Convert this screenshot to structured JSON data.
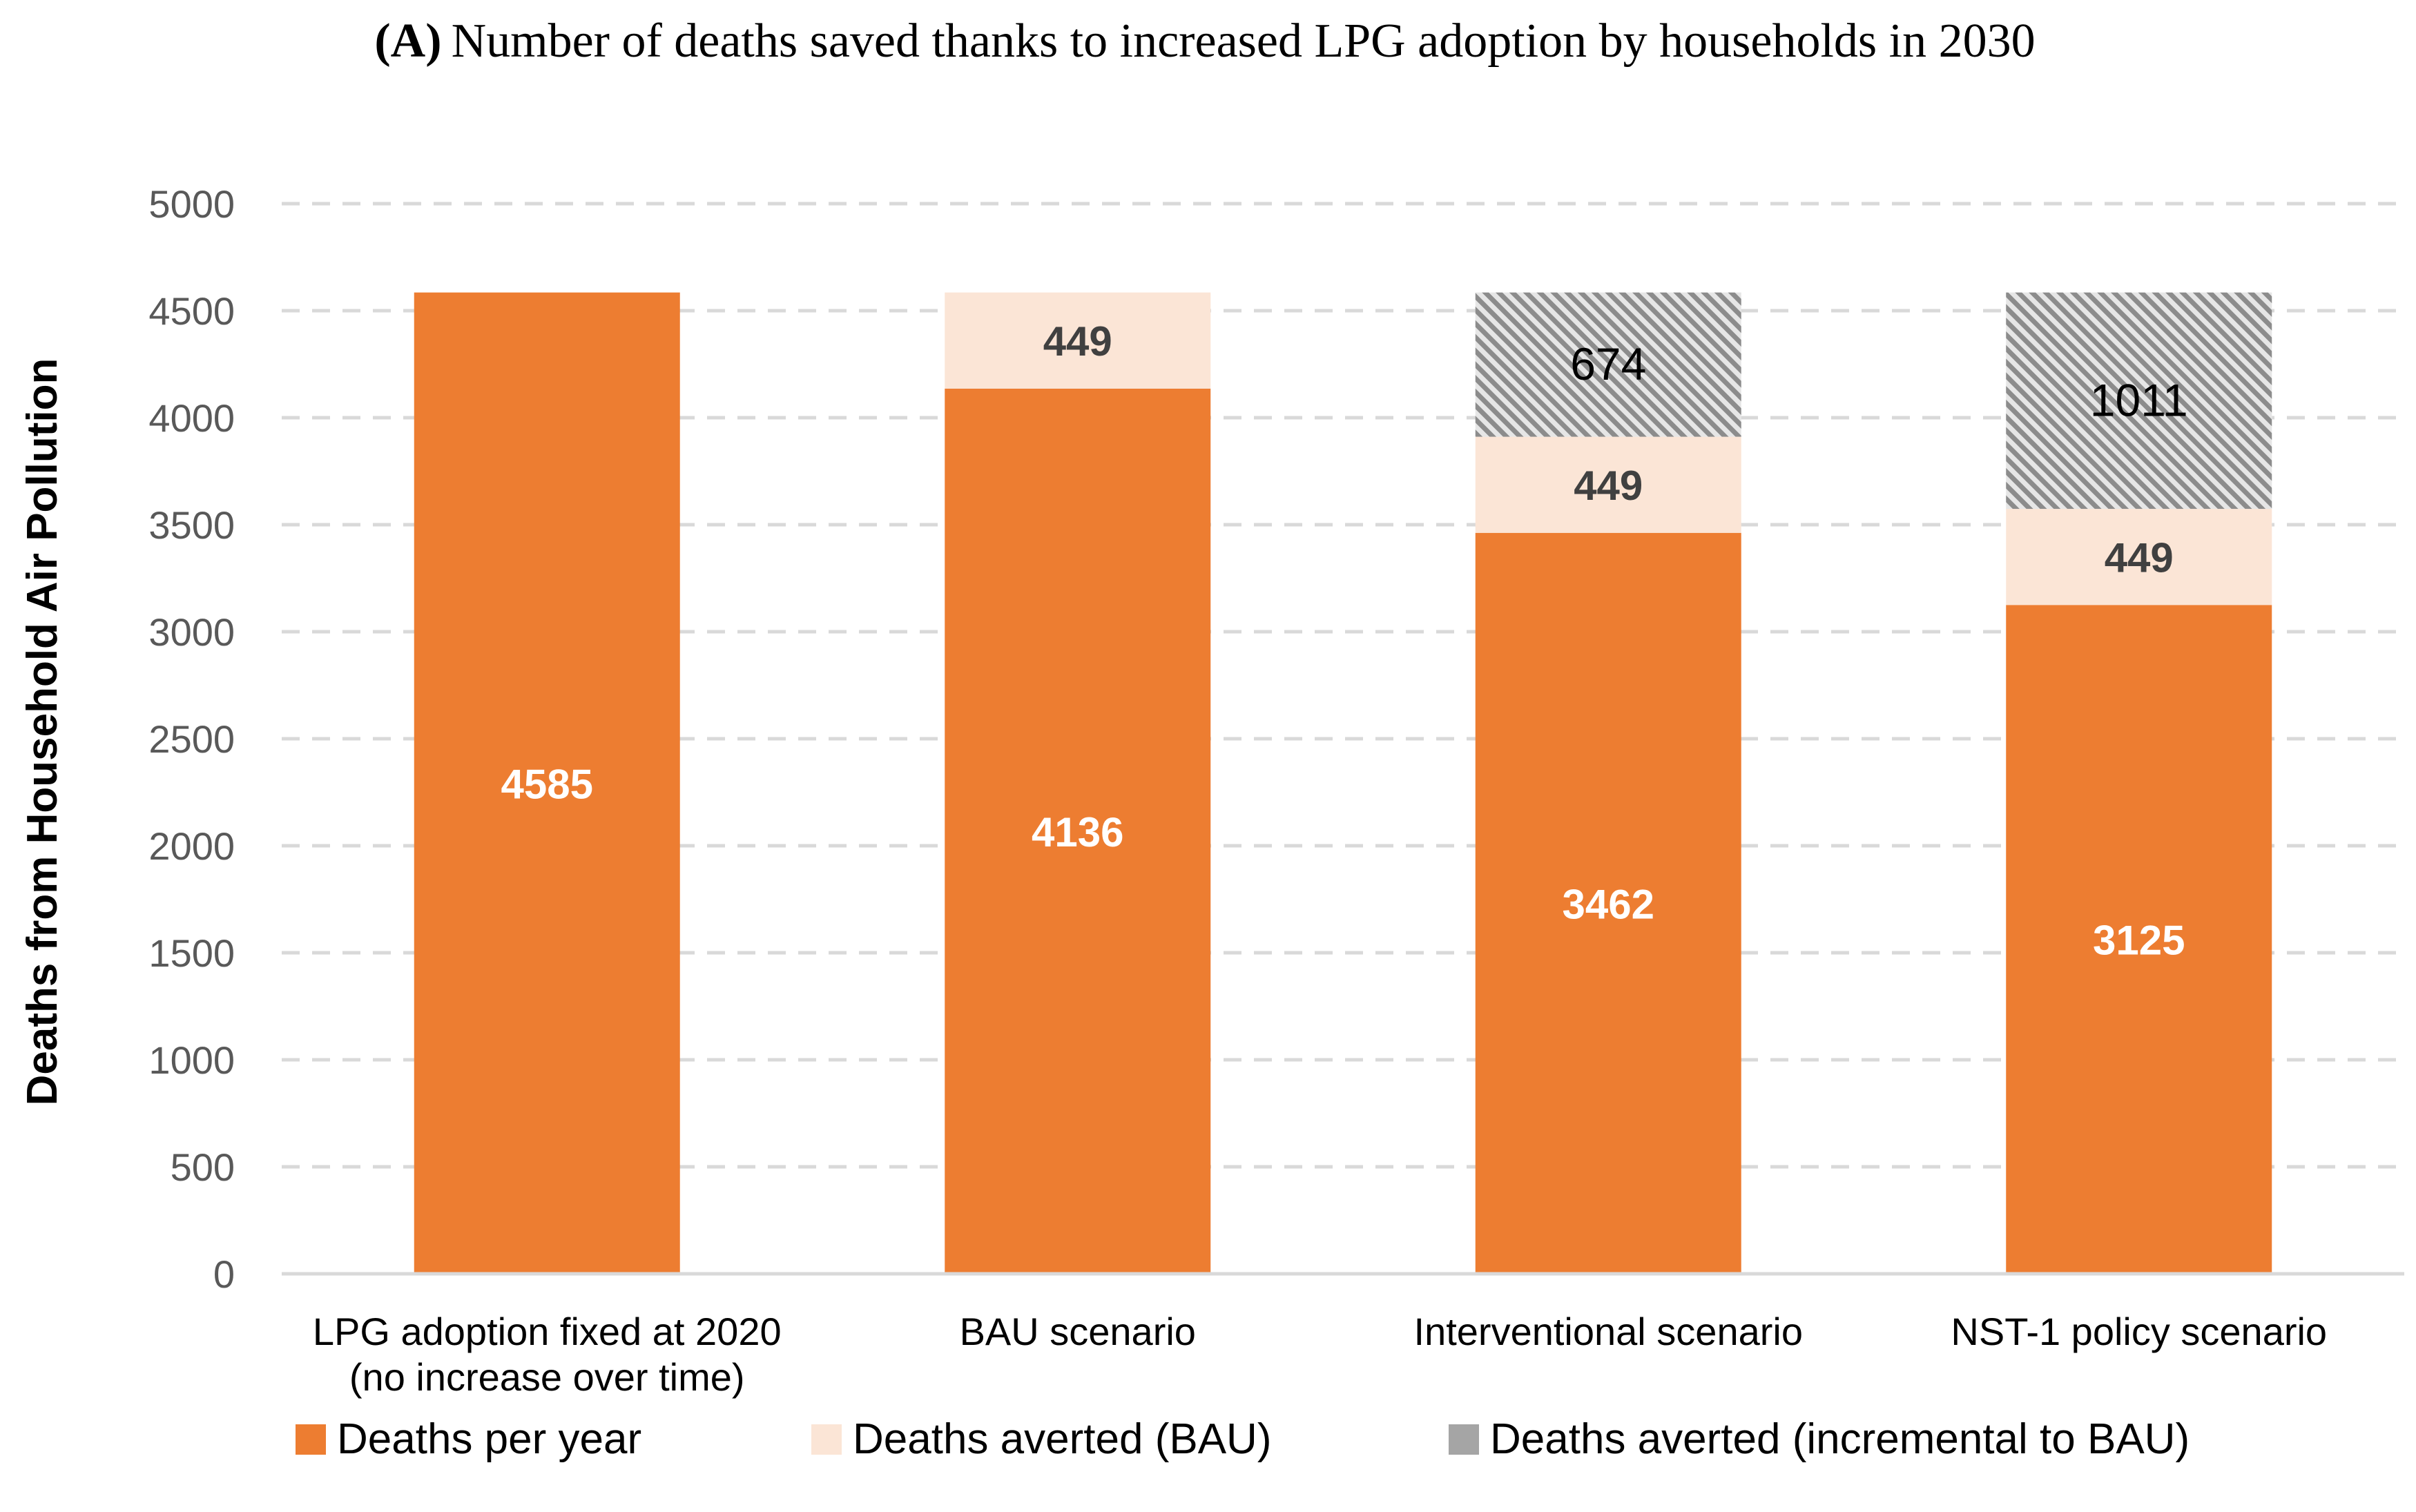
{
  "chart_data": {
    "type": "bar",
    "stacked": true,
    "title_prefix": "(A)",
    "title_main": "Number of deaths saved thanks to increased LPG adoption by households in 2030",
    "xlabel": "",
    "ylabel": "Deaths from Household Air Pollution",
    "ylim": [
      0,
      5000
    ],
    "yticks": [
      0,
      500,
      1000,
      1500,
      2000,
      2500,
      3000,
      3500,
      4000,
      4500,
      5000
    ],
    "grid": true,
    "legend_position": "bottom",
    "categories": [
      [
        "LPG adoption fixed at 2020",
        "(no increase over time)"
      ],
      [
        "BAU scenario"
      ],
      [
        "Interventional scenario"
      ],
      [
        "NST-1 policy scenario"
      ]
    ],
    "series": [
      {
        "name": "Deaths per year",
        "color": "#ED7D31",
        "label_style": "white",
        "values": [
          4585,
          4136,
          3462,
          3125
        ]
      },
      {
        "name": "Deaths averted (BAU)",
        "color": "#FBE5D6",
        "label_style": "dark",
        "values": [
          0,
          449,
          449,
          449
        ]
      },
      {
        "name": "Deaths averted (incremental to BAU)",
        "color": "#A5A5A5",
        "pattern": "diagonal-hatch",
        "label_style": "black",
        "values": [
          0,
          0,
          674,
          1011
        ]
      }
    ]
  }
}
